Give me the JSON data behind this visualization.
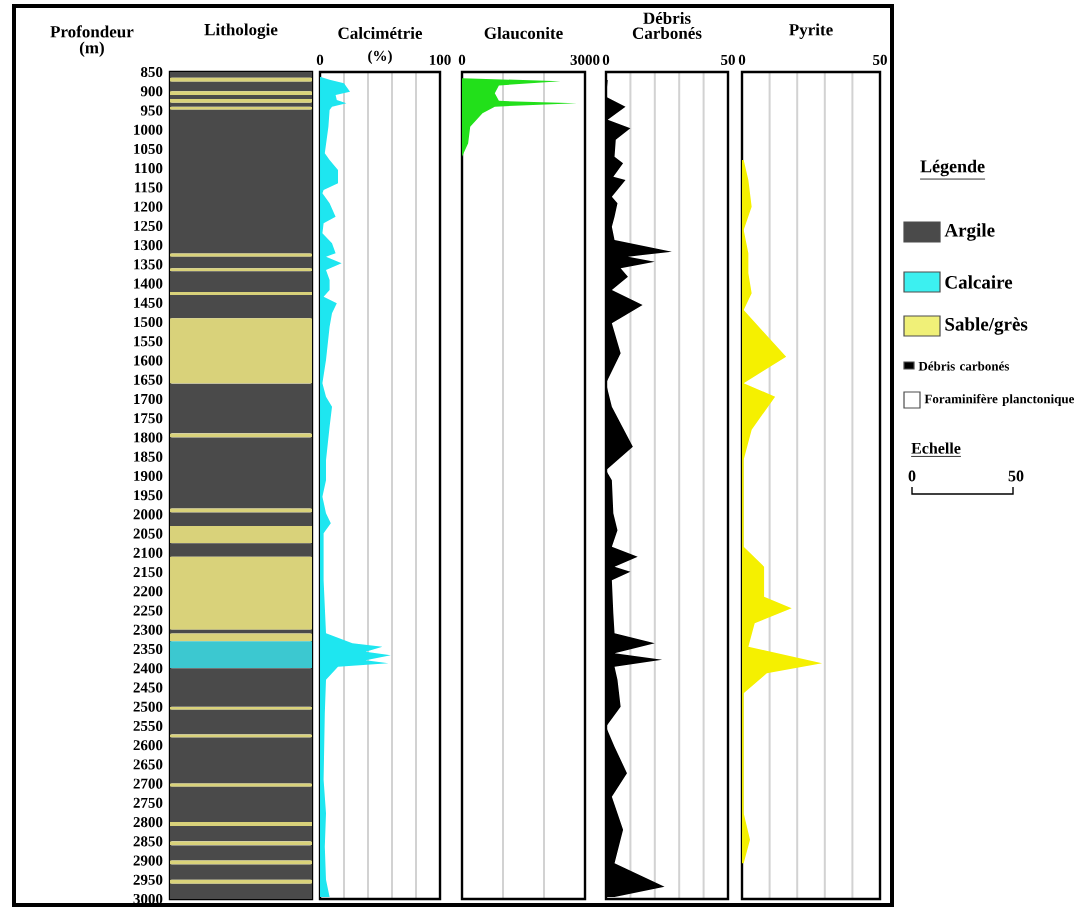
{
  "chart_data": [
    {
      "type": "bar",
      "categories": [
        null
      ],
      "title": "Lithologie",
      "ylabel": "Profondeur (m)",
      "ylim": [
        3000,
        850
      ],
      "tick_labels": "y",
      "yticks": [
        850,
        900,
        950,
        1000,
        1050,
        1100,
        1150,
        1200,
        1250,
        1300,
        1350,
        1400,
        1450,
        1500,
        1550,
        1600,
        1650,
        1700,
        1750,
        1800,
        1850,
        1900,
        1950,
        2000,
        2050,
        2100,
        2150,
        2200,
        2250,
        2300,
        2350,
        2400,
        2450,
        2500,
        2550,
        2600,
        2650,
        2700,
        2750,
        2800,
        2850,
        2900,
        2950,
        3000
      ],
      "series": [
        {
          "color": "#4a4a4a",
          "base": [
            850
          ],
          "values": [
            15
          ]
        },
        {
          "color": "#d9d27a",
          "base": [
            865
          ],
          "values": [
            10
          ]
        },
        {
          "color": "#4a4a4a",
          "base": [
            875
          ],
          "values": [
            25
          ]
        },
        {
          "color": "#d9d27a",
          "base": [
            900
          ],
          "values": [
            10
          ]
        },
        {
          "color": "#4a4a4a",
          "base": [
            910
          ],
          "values": [
            10
          ]
        },
        {
          "color": "#d9d27a",
          "base": [
            920
          ],
          "values": [
            10
          ]
        },
        {
          "color": "#4a4a4a",
          "base": [
            930
          ],
          "values": [
            10
          ]
        },
        {
          "color": "#d9d27a",
          "base": [
            940
          ],
          "values": [
            8
          ]
        },
        {
          "color": "#4a4a4a",
          "base": [
            948
          ],
          "values": [
            374
          ]
        },
        {
          "color": "#d9d27a",
          "base": [
            1322
          ],
          "values": [
            8
          ]
        },
        {
          "color": "#4a4a4a",
          "base": [
            1330
          ],
          "values": [
            30
          ]
        },
        {
          "color": "#d9d27a",
          "base": [
            1360
          ],
          "values": [
            8
          ]
        },
        {
          "color": "#4a4a4a",
          "base": [
            1368
          ],
          "values": [
            54
          ]
        },
        {
          "color": "#d9d27a",
          "base": [
            1422
          ],
          "values": [
            8
          ]
        },
        {
          "color": "#4a4a4a",
          "base": [
            1430
          ],
          "values": [
            60
          ]
        },
        {
          "color": "#d9d27a",
          "base": [
            1490
          ],
          "values": [
            170
          ]
        },
        {
          "color": "#4a4a4a",
          "base": [
            1660
          ],
          "values": [
            130
          ]
        },
        {
          "color": "#d9d27a",
          "base": [
            1790
          ],
          "values": [
            10
          ]
        },
        {
          "color": "#4a4a4a",
          "base": [
            1800
          ],
          "values": [
            185
          ]
        },
        {
          "color": "#d9d27a",
          "base": [
            1985
          ],
          "values": [
            10
          ]
        },
        {
          "color": "#4a4a4a",
          "base": [
            1995
          ],
          "values": [
            35
          ]
        },
        {
          "color": "#d9d27a",
          "base": [
            2030
          ],
          "values": [
            45
          ]
        },
        {
          "color": "#4a4a4a",
          "base": [
            2075
          ],
          "values": [
            35
          ]
        },
        {
          "color": "#d9d27a",
          "base": [
            2110
          ],
          "values": [
            190
          ]
        },
        {
          "color": "#4a4a4a",
          "base": [
            2300
          ],
          "values": [
            10
          ]
        },
        {
          "color": "#d9d27a",
          "base": [
            2310
          ],
          "values": [
            20
          ]
        },
        {
          "color": "#3cc8d0",
          "base": [
            2330
          ],
          "values": [
            70
          ]
        },
        {
          "color": "#4a4a4a",
          "base": [
            2400
          ],
          "values": [
            100
          ]
        },
        {
          "color": "#d9d27a",
          "base": [
            2500
          ],
          "values": [
            8
          ]
        },
        {
          "color": "#4a4a4a",
          "base": [
            2508
          ],
          "values": [
            64
          ]
        },
        {
          "color": "#d9d27a",
          "base": [
            2572
          ],
          "values": [
            8
          ]
        },
        {
          "color": "#4a4a4a",
          "base": [
            2580
          ],
          "values": [
            120
          ]
        },
        {
          "color": "#d9d27a",
          "base": [
            2700
          ],
          "values": [
            8
          ]
        },
        {
          "color": "#4a4a4a",
          "base": [
            2708
          ],
          "values": [
            92
          ]
        },
        {
          "color": "#d9d27a",
          "base": [
            2800
          ],
          "values": [
            10
          ]
        },
        {
          "color": "#4a4a4a",
          "base": [
            2810
          ],
          "values": [
            40
          ]
        },
        {
          "color": "#d9d27a",
          "base": [
            2850
          ],
          "values": [
            10
          ]
        },
        {
          "color": "#4a4a4a",
          "base": [
            2860
          ],
          "values": [
            40
          ]
        },
        {
          "color": "#d9d27a",
          "base": [
            2900
          ],
          "values": [
            10
          ]
        },
        {
          "color": "#4a4a4a",
          "base": [
            2910
          ],
          "values": [
            40
          ]
        },
        {
          "color": "#d9d27a",
          "base": [
            2950
          ],
          "values": [
            10
          ]
        },
        {
          "color": "#4a4a4a",
          "base": [
            2960
          ],
          "values": [
            40
          ]
        }
      ]
    },
    {
      "type": "area",
      "orientation": "horizontal",
      "title": "Calcimétrie",
      "xlabel": "(%)",
      "xlim": [
        0,
        100
      ],
      "xticks": [
        0,
        {
          "value": 20,
          "label": null
        },
        {
          "value": 40,
          "label": null
        },
        {
          "value": 60,
          "label": null
        },
        {
          "value": 80,
          "label": null
        },
        100
      ],
      "ylim": [
        3000,
        850
      ],
      "grid": "x",
      "tick_labels": "x",
      "series": [
        {
          "color": "#1ee6f0",
          "x": [
            862,
            870,
            879,
            901,
            910,
            923,
            931,
            940,
            949,
            992,
            1061,
            1079,
            1105,
            1139,
            1157,
            1165,
            1191,
            1226,
            1243,
            1269,
            1295,
            1321,
            1330,
            1347,
            1365,
            1391,
            1417,
            1434,
            1451,
            1477,
            1512,
            1599,
            1659,
            1694,
            1720,
            1772,
            1859,
            1911,
            1954,
            1997,
            2023,
            2049,
            2171,
            2309,
            2335,
            2344,
            2357,
            2366,
            2379,
            2387,
            2396,
            2413,
            2430,
            2517,
            2690,
            2777,
            2864,
            2950,
            2995
          ],
          "values": [
            0,
            8,
            20,
            25,
            13,
            14,
            22,
            10,
            8,
            7,
            4,
            8,
            15,
            15,
            3,
            2,
            8,
            13,
            3,
            2,
            10,
            13,
            5,
            18,
            5,
            8,
            8,
            3,
            14,
            10,
            8,
            5,
            2,
            5,
            10,
            8,
            5,
            5,
            2,
            5,
            9,
            3,
            3,
            5,
            27,
            52,
            38,
            59,
            38,
            57,
            15,
            10,
            5,
            4,
            3,
            5,
            4,
            5,
            8
          ]
        }
      ]
    },
    {
      "type": "area",
      "orientation": "horizontal",
      "title": "Glauconite",
      "xlim": [
        0,
        3000
      ],
      "xticks": [
        0,
        {
          "value": 1000,
          "label": null
        },
        {
          "value": 2000,
          "label": null
        },
        3000
      ],
      "ylim": [
        3000,
        850
      ],
      "grid": "x",
      "tick_labels": "x",
      "series": [
        {
          "color": "#22e01a",
          "x": [
            866,
            874,
            885,
            905,
            925,
            931,
            940,
            957,
            992,
            1035,
            1070
          ],
          "values": [
            0,
            2400,
            900,
            800,
            900,
            2800,
            800,
            500,
            200,
            150,
            0
          ]
        }
      ]
    },
    {
      "type": "area",
      "orientation": "horizontal",
      "title": "Débris Carbonés",
      "xlim": [
        0,
        50
      ],
      "xticks": [
        0,
        {
          "value": 10,
          "label": null
        },
        {
          "value": 20,
          "label": null
        },
        {
          "value": 30,
          "label": null
        },
        {
          "value": 40,
          "label": null
        },
        50
      ],
      "ylim": [
        3000,
        850
      ],
      "grid": "x",
      "tick_labels": "x",
      "series": [
        {
          "color": "#000000",
          "x": [
            871,
            914,
            940,
            974,
            996,
            1026,
            1070,
            1087,
            1122,
            1131,
            1174,
            1191,
            1226,
            1252,
            1287,
            1317,
            1330,
            1343,
            1360,
            1382,
            1417,
            1456,
            1503,
            1581,
            1659,
            1720,
            1824,
            1885,
            1911,
            1997,
            2041,
            2084,
            2110,
            2136,
            2149,
            2171,
            2257,
            2309,
            2335,
            2361,
            2378,
            2396,
            2430,
            2500,
            2552,
            2604,
            2673,
            2734,
            2820,
            2907,
            2968,
            2995
          ],
          "values": [
            0.7,
            0,
            8,
            0.7,
            10,
            4,
            3.5,
            7,
            3,
            8,
            2.4,
            4.7,
            3.5,
            2.4,
            3.5,
            27,
            9,
            20,
            6,
            9,
            2.4,
            15,
            2.4,
            6,
            0,
            2.4,
            11,
            0,
            2.4,
            3,
            4.7,
            2.4,
            13,
            3.5,
            10,
            2.4,
            3,
            3.5,
            20,
            3.5,
            23,
            3.5,
            4.7,
            6,
            0,
            3.5,
            8.6,
            2.4,
            7,
            3.5,
            24,
            3.5
          ]
        }
      ]
    },
    {
      "type": "area",
      "orientation": "horizontal",
      "title": "Pyrite",
      "xlim": [
        0,
        50
      ],
      "xticks": [
        0,
        {
          "value": 10,
          "label": null
        },
        {
          "value": 20,
          "label": null
        },
        {
          "value": 30,
          "label": null
        },
        {
          "value": 40,
          "label": null
        },
        50
      ],
      "ylim": [
        3000,
        850
      ],
      "grid": "x",
      "tick_labels": "x",
      "series": [
        {
          "color": "#f5f000",
          "x": [
            1079,
            1131,
            1200,
            1261,
            1321,
            1373,
            1425,
            1469,
            1590,
            1659,
            1694,
            1780,
            1858,
            2084,
            2136,
            2214,
            2244,
            2283,
            2344,
            2387,
            2413,
            2465,
            2777,
            2846,
            2907
          ],
          "values": [
            0.6,
            2.3,
            3.5,
            0.6,
            2.3,
            2.3,
            3.5,
            0.6,
            16,
            0.6,
            12,
            3.5,
            0.6,
            0.6,
            8,
            8,
            18,
            4.6,
            2.3,
            29,
            9,
            0.6,
            0.6,
            2.9,
            0.6
          ]
        }
      ]
    },
    {
      "type": "other",
      "title": "Légende",
      "categories": [
        "Argile",
        "Calcaire",
        "Sable/grès",
        "Débris carbonés",
        "Foraminifère planctonique"
      ],
      "colors": [
        "#4a4a4a",
        "#3cf0f0",
        "#f0f078",
        "#000000",
        "#ffffff"
      ],
      "annotations": [
        "Echelle",
        "0",
        "50"
      ]
    }
  ]
}
